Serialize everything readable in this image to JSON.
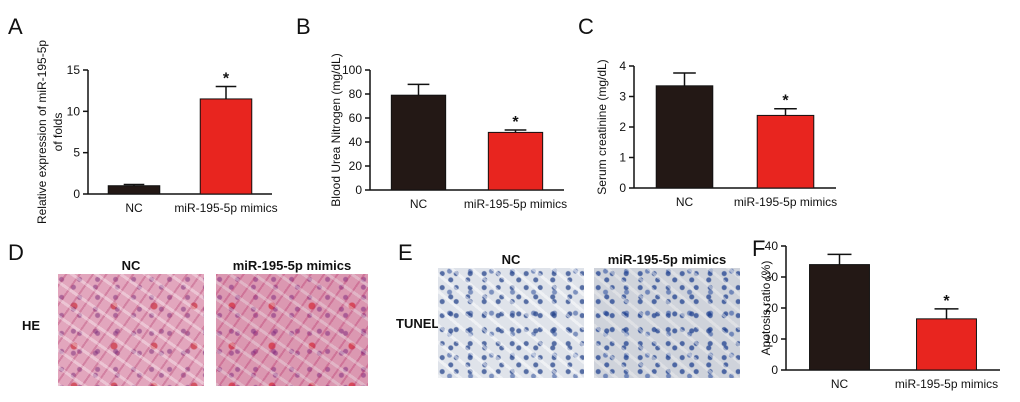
{
  "panel_letters": {
    "a": "A",
    "b": "B",
    "c": "C",
    "d": "D",
    "e": "E",
    "f": "F"
  },
  "colors": {
    "nc": "#231815",
    "mimics": "#e8251f"
  },
  "panel_d": {
    "row_label": "HE",
    "captions": [
      "NC",
      "miR-195-5p mimics"
    ]
  },
  "panel_e": {
    "row_label": "TUNEL",
    "captions": [
      "NC",
      "miR-195-5p mimics"
    ]
  },
  "chart_data": [
    {
      "panel": "A",
      "type": "bar",
      "categories": [
        "NC",
        "miR-195-5p mimics"
      ],
      "values": [
        1.0,
        11.5
      ],
      "errors": [
        0.15,
        1.5
      ],
      "significance": [
        "",
        "*"
      ],
      "ylabel": [
        "Relative expression of miR-195-5p",
        "of folds"
      ],
      "ylim": [
        0,
        15
      ],
      "yticks": [
        0,
        5,
        10,
        15
      ]
    },
    {
      "panel": "B",
      "type": "bar",
      "categories": [
        "NC",
        "miR-195-5p mimics"
      ],
      "values": [
        79,
        48
      ],
      "errors": [
        9,
        2
      ],
      "significance": [
        "",
        "*"
      ],
      "ylabel": [
        "Blood Urea Nitrogen  (mg/dL)"
      ],
      "ylim": [
        0,
        100
      ],
      "yticks": [
        0,
        20,
        40,
        60,
        80,
        100
      ]
    },
    {
      "panel": "C",
      "type": "bar",
      "categories": [
        "NC",
        "miR-195-5p mimics"
      ],
      "values": [
        3.35,
        2.38
      ],
      "errors": [
        0.42,
        0.22
      ],
      "significance": [
        "",
        "*"
      ],
      "ylabel": [
        "Serum creatinine (mg/dL)"
      ],
      "ylim": [
        0,
        4
      ],
      "yticks": [
        0,
        1,
        2,
        3,
        4
      ]
    },
    {
      "panel": "F",
      "type": "bar",
      "categories": [
        "NC",
        "miR-195-5p mimics"
      ],
      "values": [
        34,
        16.5
      ],
      "errors": [
        3.3,
        3.2
      ],
      "significance": [
        "",
        "*"
      ],
      "ylabel": [
        "Apotosis ratio (%)"
      ],
      "ylim": [
        0,
        40
      ],
      "yticks": [
        0,
        10,
        20,
        30,
        40
      ]
    }
  ]
}
